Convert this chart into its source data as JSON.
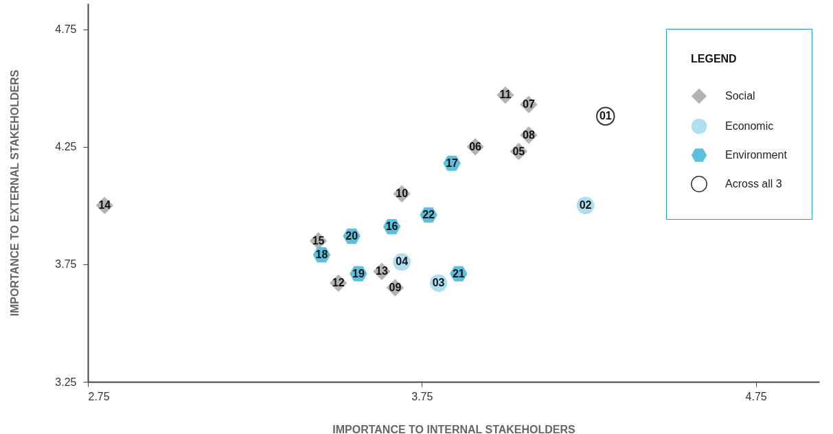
{
  "chart_data": {
    "type": "scatter",
    "xlabel": "IMPORTANCE TO INTERNAL STAKEHOLDERS",
    "ylabel": "IMPORTANCE TO EXTERNAL STAKEHOLDERS",
    "legend_title": "LEGEND",
    "legend": "top right",
    "grid": false,
    "xlim": [
      2.75,
      4.94
    ],
    "ylim": [
      3.25,
      4.86
    ],
    "xticks": [
      {
        "value": 2.75,
        "label": "2.75"
      },
      {
        "value": 3.75,
        "label": "3.75"
      },
      {
        "value": 4.75,
        "label": "4.75"
      }
    ],
    "yticks": [
      {
        "value": 3.25,
        "label": "3.25"
      },
      {
        "value": 3.75,
        "label": "3.75"
      },
      {
        "value": 4.25,
        "label": "4.25"
      },
      {
        "value": 4.75,
        "label": "4.75"
      }
    ],
    "series": [
      {
        "name": "Social",
        "color": "#b3b3b3",
        "marker": "diamond",
        "x": [
          2.8,
          3.44,
          3.5,
          3.63,
          3.67,
          3.69,
          3.91,
          4.04,
          4.07,
          4.07,
          4.0
        ],
        "values": [
          4.0,
          3.85,
          3.67,
          3.72,
          3.65,
          4.05,
          4.25,
          4.23,
          4.3,
          4.43,
          4.47
        ]
      },
      {
        "name": "Economic",
        "color": "#addff0",
        "marker": "circle",
        "x": [
          3.69,
          3.8,
          4.24
        ],
        "values": [
          3.76,
          3.67,
          4.0
        ]
      },
      {
        "name": "Environment",
        "color": "#5bc0de",
        "x": [
          3.45,
          3.54,
          3.56,
          3.66,
          3.77,
          3.86,
          3.84
        ],
        "values": [
          3.79,
          3.87,
          3.71,
          3.91,
          3.96,
          3.71,
          4.18
        ]
      },
      {
        "name": "Across all 3",
        "color": "#333333",
        "marker": "circle",
        "x": [
          4.3
        ],
        "values": [
          4.38
        ]
      }
    ],
    "annotations": [
      {
        "text": "14",
        "x": 2.8,
        "y": 4.0
      },
      {
        "text": "15",
        "x": 3.44,
        "y": 3.85
      },
      {
        "text": "12",
        "x": 3.5,
        "y": 3.67
      },
      {
        "text": "13",
        "x": 3.63,
        "y": 3.72
      },
      {
        "text": "09",
        "x": 3.67,
        "y": 3.65
      },
      {
        "text": "10",
        "x": 3.69,
        "y": 4.05
      },
      {
        "text": "06",
        "x": 3.91,
        "y": 4.25
      },
      {
        "text": "05",
        "x": 4.04,
        "y": 4.23
      },
      {
        "text": "08",
        "x": 4.07,
        "y": 4.3
      },
      {
        "text": "07",
        "x": 4.07,
        "y": 4.43
      },
      {
        "text": "11",
        "x": 4.0,
        "y": 4.47
      },
      {
        "text": "04",
        "x": 3.69,
        "y": 3.76
      },
      {
        "text": "03",
        "x": 3.8,
        "y": 3.67
      },
      {
        "text": "02",
        "x": 4.24,
        "y": 4.0
      },
      {
        "text": "18",
        "x": 3.45,
        "y": 3.79
      },
      {
        "text": "20",
        "x": 3.54,
        "y": 3.87
      },
      {
        "text": "19",
        "x": 3.56,
        "y": 3.71
      },
      {
        "text": "16",
        "x": 3.66,
        "y": 3.91
      },
      {
        "text": "22",
        "x": 3.77,
        "y": 3.96
      },
      {
        "text": "21",
        "x": 3.86,
        "y": 3.71
      },
      {
        "text": "17",
        "x": 3.84,
        "y": 4.18
      },
      {
        "text": "01",
        "x": 4.3,
        "y": 4.38
      }
    ]
  }
}
